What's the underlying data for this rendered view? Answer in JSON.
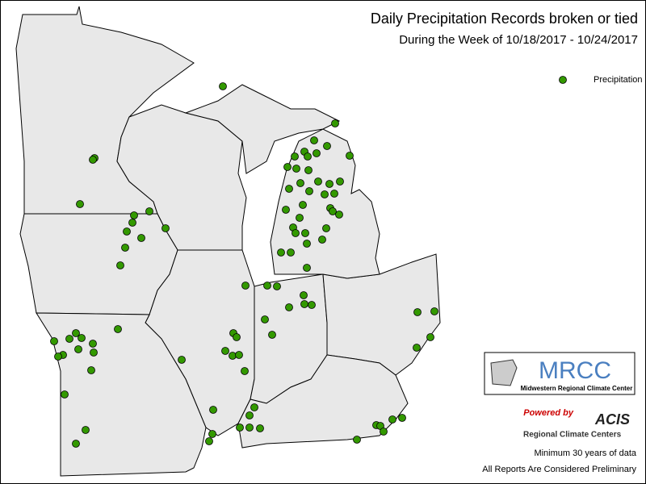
{
  "header": {
    "title": "Daily Precipitation Records broken or tied",
    "subtitle": "During the Week of 10/18/2017 - 10/24/2017"
  },
  "legend": {
    "label": "Precipitation",
    "color": "#339900"
  },
  "logos": {
    "mrcc": "MRCC",
    "mrcc_name": "Midwestern Regional Climate Center",
    "powered": "Powered by",
    "acis": "ACIS",
    "acis_name": "Regional Climate Centers"
  },
  "notes": [
    "Minimum 30 years of data",
    "All Reports Are Considered Preliminary"
  ]
}
